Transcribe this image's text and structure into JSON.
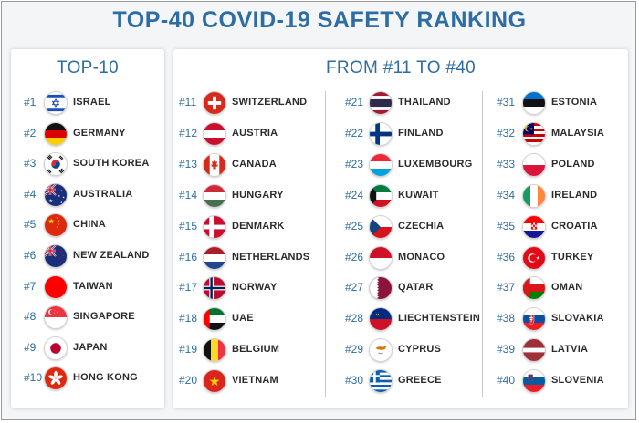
{
  "title": "TOP-40 COVID-19 SAFETY RANKING",
  "top10_heading": "TOP-10",
  "rest_heading": "FROM #11 TO #40",
  "columns": [
    {
      "name": "top10",
      "entries": [
        {
          "rank": "#1",
          "country": "ISRAEL",
          "flag": "israel-flag-icon"
        },
        {
          "rank": "#2",
          "country": "GERMANY",
          "flag": "germany-flag-icon"
        },
        {
          "rank": "#3",
          "country": "SOUTH KOREA",
          "flag": "south-korea-flag-icon"
        },
        {
          "rank": "#4",
          "country": "AUSTRALIA",
          "flag": "australia-flag-icon"
        },
        {
          "rank": "#5",
          "country": "CHINA",
          "flag": "china-flag-icon"
        },
        {
          "rank": "#6",
          "country": "NEW ZEALAND",
          "flag": "new-zealand-flag-icon"
        },
        {
          "rank": "#7",
          "country": "TAIWAN",
          "flag": "taiwan-flag-icon"
        },
        {
          "rank": "#8",
          "country": "SINGAPORE",
          "flag": "singapore-flag-icon"
        },
        {
          "rank": "#9",
          "country": "JAPAN",
          "flag": "japan-flag-icon"
        },
        {
          "rank": "#10",
          "country": "HONG KONG",
          "flag": "hong-kong-flag-icon"
        }
      ]
    },
    {
      "name": "col11",
      "entries": [
        {
          "rank": "#11",
          "country": "SWITZERLAND",
          "flag": "switzerland-flag-icon"
        },
        {
          "rank": "#12",
          "country": "AUSTRIA",
          "flag": "austria-flag-icon"
        },
        {
          "rank": "#13",
          "country": "CANADA",
          "flag": "canada-flag-icon"
        },
        {
          "rank": "#14",
          "country": "HUNGARY",
          "flag": "hungary-flag-icon"
        },
        {
          "rank": "#15",
          "country": "DENMARK",
          "flag": "denmark-flag-icon"
        },
        {
          "rank": "#16",
          "country": "NETHERLANDS",
          "flag": "netherlands-flag-icon"
        },
        {
          "rank": "#17",
          "country": "NORWAY",
          "flag": "norway-flag-icon"
        },
        {
          "rank": "#18",
          "country": "UAE",
          "flag": "uae-flag-icon"
        },
        {
          "rank": "#19",
          "country": "BELGIUM",
          "flag": "belgium-flag-icon"
        },
        {
          "rank": "#20",
          "country": "VIETNAM",
          "flag": "vietnam-flag-icon"
        }
      ]
    },
    {
      "name": "col21",
      "entries": [
        {
          "rank": "#21",
          "country": "THAILAND",
          "flag": "thailand-flag-icon"
        },
        {
          "rank": "#22",
          "country": "FINLAND",
          "flag": "finland-flag-icon"
        },
        {
          "rank": "#23",
          "country": "LUXEMBOURG",
          "flag": "luxembourg-flag-icon"
        },
        {
          "rank": "#24",
          "country": "KUWAIT",
          "flag": "kuwait-flag-icon"
        },
        {
          "rank": "#25",
          "country": "CZECHIA",
          "flag": "czechia-flag-icon"
        },
        {
          "rank": "#26",
          "country": "MONACO",
          "flag": "monaco-flag-icon"
        },
        {
          "rank": "#27",
          "country": "QATAR",
          "flag": "qatar-flag-icon"
        },
        {
          "rank": "#28",
          "country": "LIECHTENSTEIN",
          "flag": "liechtenstein-flag-icon"
        },
        {
          "rank": "#29",
          "country": "CYPRUS",
          "flag": "cyprus-flag-icon"
        },
        {
          "rank": "#30",
          "country": "GREECE",
          "flag": "greece-flag-icon"
        }
      ]
    },
    {
      "name": "col31",
      "entries": [
        {
          "rank": "#31",
          "country": "ESTONIA",
          "flag": "estonia-flag-icon"
        },
        {
          "rank": "#32",
          "country": "MALAYSIA",
          "flag": "malaysia-flag-icon"
        },
        {
          "rank": "#33",
          "country": "POLAND",
          "flag": "poland-flag-icon"
        },
        {
          "rank": "#34",
          "country": "IRELAND",
          "flag": "ireland-flag-icon"
        },
        {
          "rank": "#35",
          "country": "CROATIA",
          "flag": "croatia-flag-icon"
        },
        {
          "rank": "#36",
          "country": "TURKEY",
          "flag": "turkey-flag-icon"
        },
        {
          "rank": "#37",
          "country": "OMAN",
          "flag": "oman-flag-icon"
        },
        {
          "rank": "#38",
          "country": "SLOVAKIA",
          "flag": "slovakia-flag-icon"
        },
        {
          "rank": "#39",
          "country": "LATVIA",
          "flag": "latvia-flag-icon"
        },
        {
          "rank": "#40",
          "country": "SLOVENIA",
          "flag": "slovenia-flag-icon"
        }
      ]
    }
  ],
  "colors": {
    "title": "#2e6da4",
    "text": "#2b2b2b"
  }
}
